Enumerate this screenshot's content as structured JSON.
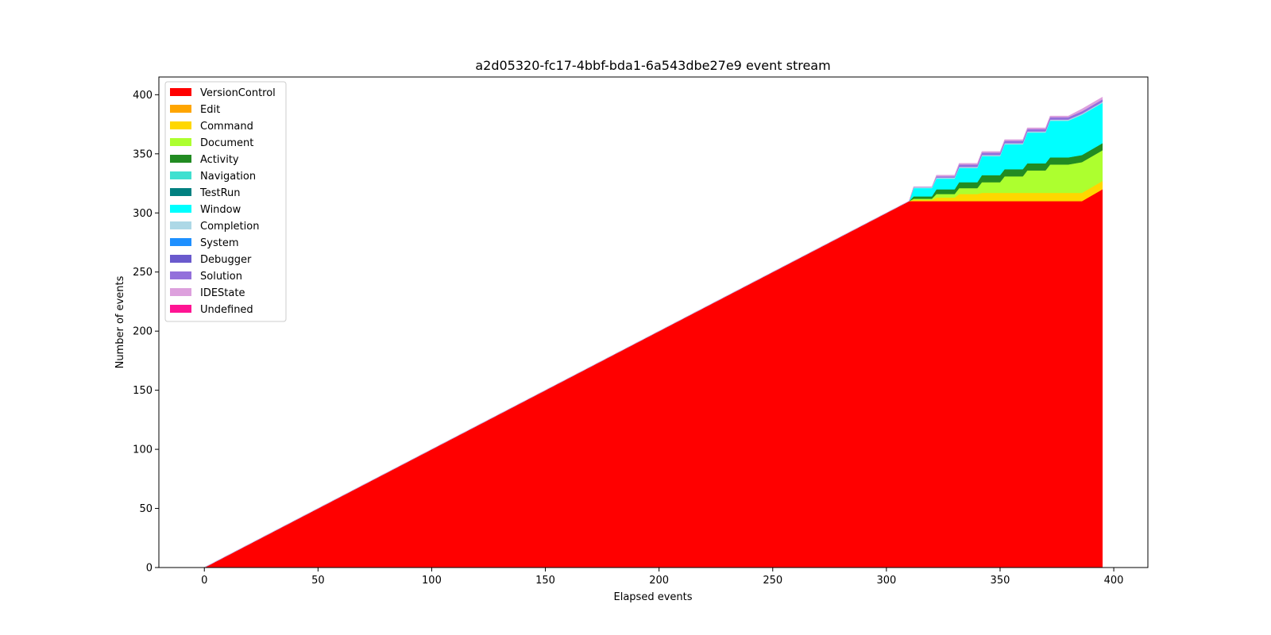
{
  "chart_data": {
    "type": "area",
    "title": "a2d05320-fc17-4bbf-bda1-6a543dbe27e9 event stream",
    "xlabel": "Elapsed events",
    "ylabel": "Number of events",
    "xlim": [
      -20,
      415
    ],
    "ylim": [
      0,
      415
    ],
    "xticks": [
      0,
      50,
      100,
      150,
      200,
      250,
      300,
      350,
      400
    ],
    "yticks": [
      0,
      50,
      100,
      150,
      200,
      250,
      300,
      350,
      400
    ],
    "grid": false,
    "legend_position": "top-left",
    "stacked": true,
    "x": [
      0,
      310,
      312,
      320,
      322,
      330,
      332,
      340,
      342,
      350,
      352,
      360,
      362,
      370,
      372,
      380,
      386,
      395
    ],
    "series": [
      {
        "name": "VersionControl",
        "color": "#ff0000",
        "values": [
          0,
          310,
          310,
          310,
          310,
          310,
          310,
          310,
          310,
          310,
          310,
          310,
          310,
          310,
          310,
          310,
          310,
          320
        ]
      },
      {
        "name": "Edit",
        "color": "#ffa500",
        "values": [
          0,
          0,
          0,
          0,
          0,
          0,
          0,
          0,
          0,
          0,
          0,
          0,
          0,
          0,
          0,
          0,
          0,
          0
        ]
      },
      {
        "name": "Command",
        "color": "#ffd700",
        "values": [
          0,
          0,
          1,
          1,
          3,
          3,
          6,
          6,
          7,
          7,
          7,
          7,
          7,
          7,
          7,
          7,
          7,
          7
        ]
      },
      {
        "name": "Document",
        "color": "#adff2f",
        "values": [
          0,
          0,
          1,
          1,
          3,
          3,
          5,
          5,
          9,
          9,
          14,
          14,
          19,
          19,
          24,
          24,
          26,
          26
        ]
      },
      {
        "name": "Activity",
        "color": "#228b22",
        "values": [
          0,
          0,
          2,
          2,
          4,
          4,
          5,
          5,
          6,
          6,
          6,
          6,
          6,
          6,
          6,
          6,
          6,
          6
        ]
      },
      {
        "name": "Navigation",
        "color": "#40e0d0",
        "values": [
          0,
          0,
          0,
          0,
          0,
          0,
          0,
          0,
          0,
          0,
          0,
          0,
          0,
          0,
          0,
          0,
          0,
          0
        ]
      },
      {
        "name": "TestRun",
        "color": "#008080",
        "values": [
          0,
          0,
          0,
          0,
          0,
          0,
          0,
          0,
          0,
          0,
          0,
          0,
          0,
          0,
          0,
          0,
          0,
          0
        ]
      },
      {
        "name": "Window",
        "color": "#00ffff",
        "values": [
          0,
          0,
          7,
          7,
          9,
          9,
          12,
          12,
          16,
          16,
          21,
          21,
          26,
          26,
          31,
          31,
          34,
          34
        ]
      },
      {
        "name": "Completion",
        "color": "#add8e6",
        "values": [
          0,
          0,
          1,
          1,
          1,
          1,
          1,
          1,
          1,
          1,
          1,
          1,
          1,
          1,
          1,
          1,
          1,
          1
        ]
      },
      {
        "name": "System",
        "color": "#1e90ff",
        "values": [
          0,
          0,
          0,
          0,
          0,
          0,
          0,
          0,
          0,
          0,
          0,
          0,
          0,
          0,
          0,
          0,
          0,
          0
        ]
      },
      {
        "name": "Debugger",
        "color": "#6a5acd",
        "values": [
          0,
          0,
          0,
          0,
          0,
          0,
          0,
          0,
          0,
          0,
          0,
          0,
          0,
          0,
          0,
          0,
          0,
          0
        ]
      },
      {
        "name": "Solution",
        "color": "#9370db",
        "values": [
          0,
          0,
          0,
          0,
          1,
          1,
          2,
          2,
          2,
          2,
          2,
          2,
          2,
          2,
          2,
          2,
          2,
          2
        ]
      },
      {
        "name": "IDEState",
        "color": "#dda0dd",
        "values": [
          0,
          0,
          0,
          0,
          1,
          1,
          1,
          1,
          1,
          1,
          1,
          1,
          1,
          1,
          1,
          1,
          2,
          2
        ]
      },
      {
        "name": " Undefined",
        "color": "#ff1493",
        "values": [
          0,
          0,
          0,
          0,
          0,
          0,
          0,
          0,
          0,
          0,
          0,
          0,
          0,
          0,
          0,
          0,
          0,
          0
        ]
      }
    ]
  }
}
